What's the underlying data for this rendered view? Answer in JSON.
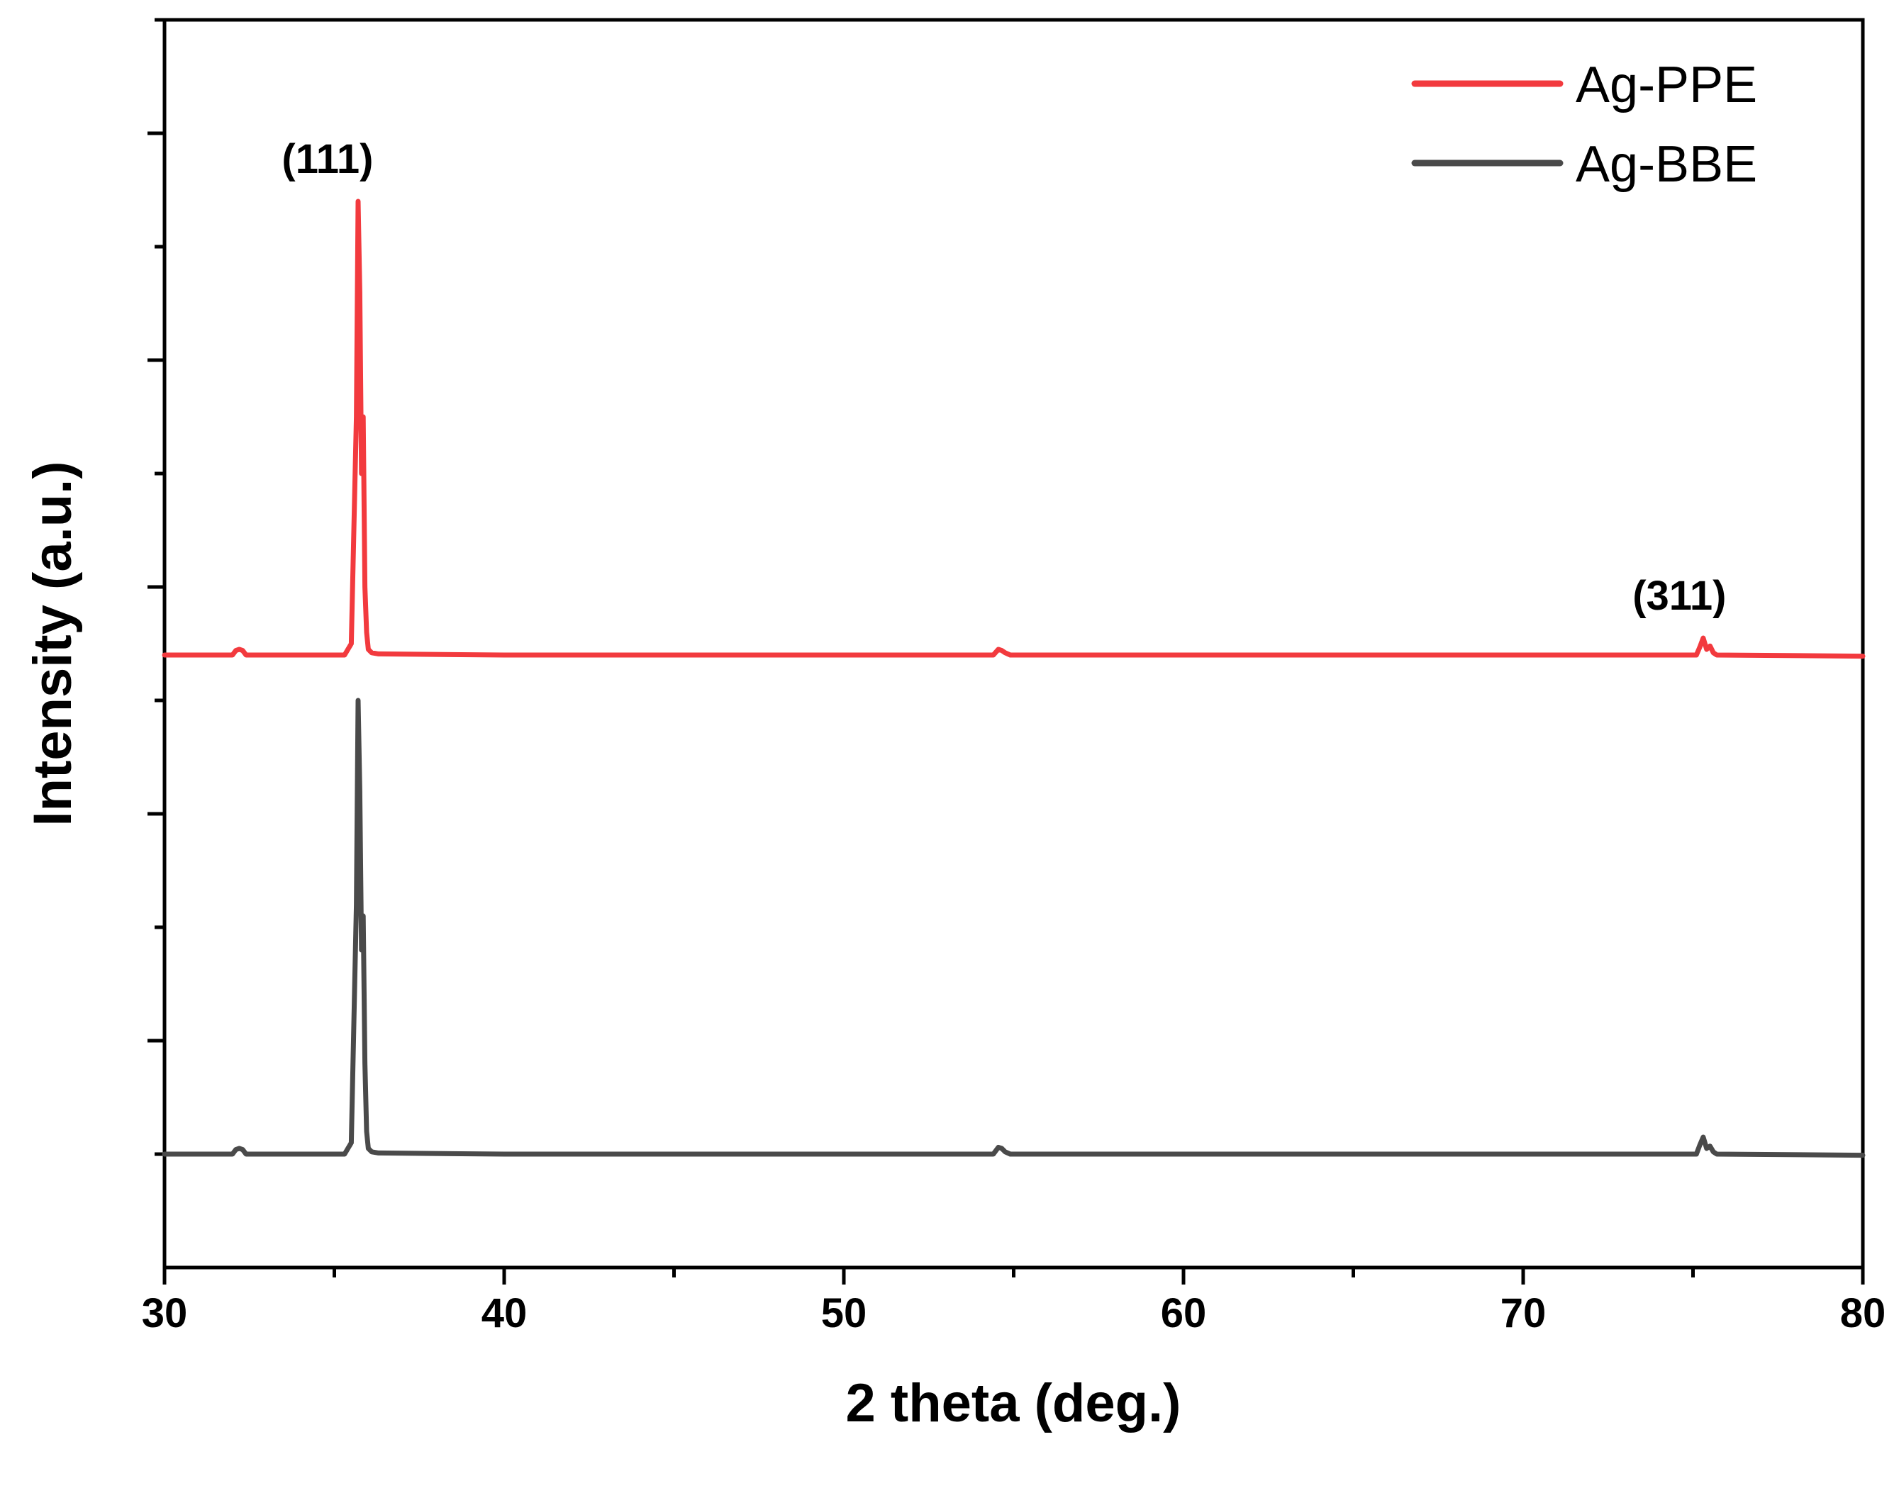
{
  "chart_data": {
    "type": "line",
    "title": "",
    "xlabel": "2 theta (deg.)",
    "ylabel": "Intensity (a.u.)",
    "xlim": [
      30,
      80
    ],
    "ylim": [
      0,
      11
    ],
    "xticks": [
      30,
      40,
      50,
      60,
      70,
      80
    ],
    "xtick_labels": [
      "30",
      "40",
      "50",
      "60",
      "70",
      "80"
    ],
    "yticks_labeled": false,
    "grid": false,
    "legend_position": "top-right",
    "annotations": [
      {
        "text": "(111)",
        "x": 34.8,
        "y": 9.65
      },
      {
        "text": "(311)",
        "x": 74.6,
        "y": 5.8
      }
    ],
    "series": [
      {
        "name": "Ag-PPE",
        "color": "#f23a3e",
        "baseline": 5.4,
        "x": [
          30.0,
          32.0,
          32.1,
          32.2,
          32.3,
          32.4,
          35.3,
          35.5,
          35.65,
          35.7,
          35.75,
          35.8,
          35.85,
          35.9,
          35.95,
          36.0,
          36.1,
          36.3,
          40.0,
          54.4,
          54.55,
          54.65,
          54.75,
          54.9,
          75.1,
          75.2,
          75.3,
          75.4,
          75.5,
          75.6,
          75.7,
          80.0
        ],
        "values": [
          5.4,
          5.4,
          5.44,
          5.45,
          5.44,
          5.4,
          5.4,
          5.5,
          7.5,
          9.4,
          8.6,
          7.0,
          7.5,
          6.0,
          5.6,
          5.45,
          5.42,
          5.41,
          5.4,
          5.4,
          5.45,
          5.44,
          5.42,
          5.4,
          5.4,
          5.47,
          5.55,
          5.45,
          5.48,
          5.42,
          5.4,
          5.39
        ]
      },
      {
        "name": "Ag-BBE",
        "color": "#4a4a4a",
        "baseline": 1.0,
        "x": [
          30.0,
          32.0,
          32.1,
          32.2,
          32.3,
          32.4,
          35.3,
          35.5,
          35.65,
          35.7,
          35.75,
          35.8,
          35.85,
          35.9,
          35.95,
          36.0,
          36.1,
          36.3,
          40.0,
          54.4,
          54.55,
          54.65,
          54.75,
          54.9,
          75.1,
          75.2,
          75.3,
          75.4,
          75.5,
          75.6,
          75.7,
          80.0
        ],
        "values": [
          1.0,
          1.0,
          1.04,
          1.05,
          1.04,
          1.0,
          1.0,
          1.1,
          3.2,
          5.0,
          4.2,
          2.8,
          3.1,
          1.8,
          1.2,
          1.05,
          1.02,
          1.01,
          1.0,
          1.0,
          1.06,
          1.05,
          1.02,
          1.0,
          1.0,
          1.08,
          1.15,
          1.05,
          1.07,
          1.02,
          1.0,
          0.99
        ]
      }
    ]
  }
}
